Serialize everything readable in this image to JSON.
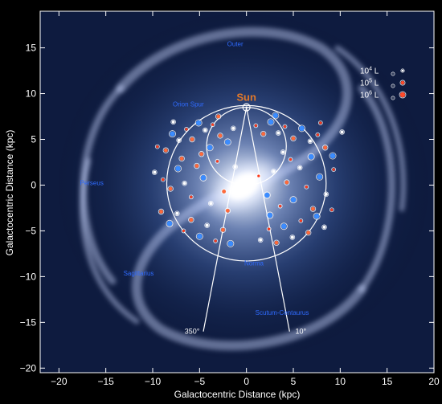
{
  "chart_data": {
    "type": "scatter",
    "xlabel": "Galactocentric Distance (kpc)",
    "ylabel": "Galactocentric Distance (kpc)",
    "xlim": [
      -22,
      20
    ],
    "ylim": [
      -20.5,
      19
    ],
    "xticks": [
      -20,
      -15,
      -10,
      -5,
      0,
      5,
      10,
      15,
      20
    ],
    "yticks": [
      -20,
      -15,
      -10,
      -5,
      0,
      5,
      10,
      15
    ],
    "tick_labels_x": [
      "−20",
      "−15",
      "−10",
      "−5",
      "0",
      "5",
      "10",
      "15",
      "20"
    ],
    "tick_labels_y": [
      "−20",
      "−15",
      "−10",
      "−5",
      "0",
      "5",
      "10",
      "15"
    ],
    "sun": {
      "x": 0,
      "y": 8.5,
      "label": "Sun"
    },
    "arm_labels": [
      {
        "text": "Outer",
        "x": -1.2,
        "y": 15.2
      },
      {
        "text": "Orion Spur",
        "x": -6.2,
        "y": 8.6
      },
      {
        "text": "Perseus",
        "x": -16.5,
        "y": 0
      },
      {
        "text": "Norma",
        "x": 0.8,
        "y": -8.8
      },
      {
        "text": "Sagittarius",
        "x": -11.5,
        "y": -9.9
      },
      {
        "text": "Scutum-Centaurus",
        "x": 3.8,
        "y": -14.2
      }
    ],
    "wedge": {
      "apex": [
        0,
        8.5
      ],
      "ends": [
        {
          "label": "350°",
          "x": -4.6,
          "y": -16.0
        },
        {
          "label": "10°",
          "x": 4.6,
          "y": -16.0
        }
      ]
    },
    "circles": [
      {
        "cx": 0,
        "cy": 0.2,
        "r": 8.5
      },
      {
        "cx": 0,
        "cy": 4.25,
        "r": 4.25
      }
    ],
    "legend": {
      "placement": "top-right",
      "entries": [
        {
          "label": "10",
          "exp": "4",
          "unit": "L",
          "size": "small"
        },
        {
          "label": "10",
          "exp": "5",
          "unit": "L",
          "size": "medium"
        },
        {
          "label": "10",
          "exp": "6",
          "unit": "L",
          "size": "large"
        }
      ]
    },
    "series": [
      {
        "values": [
          [
            -9.5,
            4.2
          ],
          [
            -8.6,
            3.8
          ],
          [
            -7.9,
            5.6
          ],
          [
            -7.2,
            4.9
          ],
          [
            -6.4,
            6.1
          ],
          [
            -5.8,
            5.0
          ],
          [
            -5.1,
            6.8
          ],
          [
            -4.4,
            6.0
          ],
          [
            -3.6,
            6.6
          ],
          [
            -2.8,
            5.4
          ],
          [
            -2.0,
            4.7
          ],
          [
            -1.4,
            6.2
          ],
          [
            1.0,
            6.5
          ],
          [
            1.8,
            5.6
          ],
          [
            2.6,
            6.9
          ],
          [
            3.4,
            5.7
          ],
          [
            4.1,
            6.4
          ],
          [
            5.0,
            5.1
          ],
          [
            5.9,
            6.2
          ],
          [
            6.8,
            4.8
          ],
          [
            7.6,
            5.5
          ],
          [
            8.4,
            4.1
          ],
          [
            9.2,
            3.2
          ],
          [
            -9.8,
            1.4
          ],
          [
            -8.9,
            0.6
          ],
          [
            -8.1,
            -0.4
          ],
          [
            -7.3,
            1.8
          ],
          [
            -6.6,
            0.2
          ],
          [
            -5.9,
            -1.3
          ],
          [
            -5.3,
            2.1
          ],
          [
            -4.6,
            0.8
          ],
          [
            -3.8,
            -2.0
          ],
          [
            -3.1,
            2.6
          ],
          [
            -2.4,
            -0.7
          ],
          [
            2.2,
            -1.1
          ],
          [
            2.9,
            1.5
          ],
          [
            3.6,
            -2.3
          ],
          [
            4.3,
            0.3
          ],
          [
            5.0,
            -1.6
          ],
          [
            5.7,
            1.9
          ],
          [
            6.4,
            -0.2
          ],
          [
            7.1,
            -2.6
          ],
          [
            7.8,
            0.9
          ],
          [
            8.5,
            -1.0
          ],
          [
            9.3,
            1.7
          ],
          [
            -9.1,
            -2.9
          ],
          [
            -8.2,
            -4.2
          ],
          [
            -7.4,
            -3.1
          ],
          [
            -6.7,
            -5.0
          ],
          [
            -5.9,
            -3.8
          ],
          [
            -5.0,
            -5.6
          ],
          [
            -4.2,
            -4.4
          ],
          [
            -3.3,
            -6.1
          ],
          [
            -2.5,
            -4.9
          ],
          [
            -1.7,
            -6.4
          ],
          [
            1.5,
            -6.0
          ],
          [
            2.4,
            -4.8
          ],
          [
            3.2,
            -6.3
          ],
          [
            4.0,
            -4.5
          ],
          [
            4.9,
            -5.7
          ],
          [
            5.8,
            -3.9
          ],
          [
            6.6,
            -5.2
          ],
          [
            7.5,
            -3.4
          ],
          [
            8.3,
            -4.6
          ],
          [
            9.1,
            -2.7
          ],
          [
            -4.8,
            3.4
          ],
          [
            -3.9,
            4.1
          ],
          [
            3.9,
            3.6
          ],
          [
            4.7,
            2.8
          ],
          [
            -6.9,
            2.9
          ],
          [
            6.9,
            3.1
          ],
          [
            -1.2,
            2.0
          ],
          [
            1.3,
            1.0
          ],
          [
            -2.0,
            -2.8
          ],
          [
            2.5,
            -3.3
          ],
          [
            -7.8,
            6.9
          ],
          [
            7.9,
            6.8
          ],
          [
            -3.0,
            7.5
          ],
          [
            3.1,
            7.6
          ],
          [
            10.2,
            5.8
          ]
        ],
        "colors": [
          "#ff3a1a",
          "#ff6a3a",
          "#3b8cff",
          "#ffffff"
        ]
      }
    ]
  }
}
